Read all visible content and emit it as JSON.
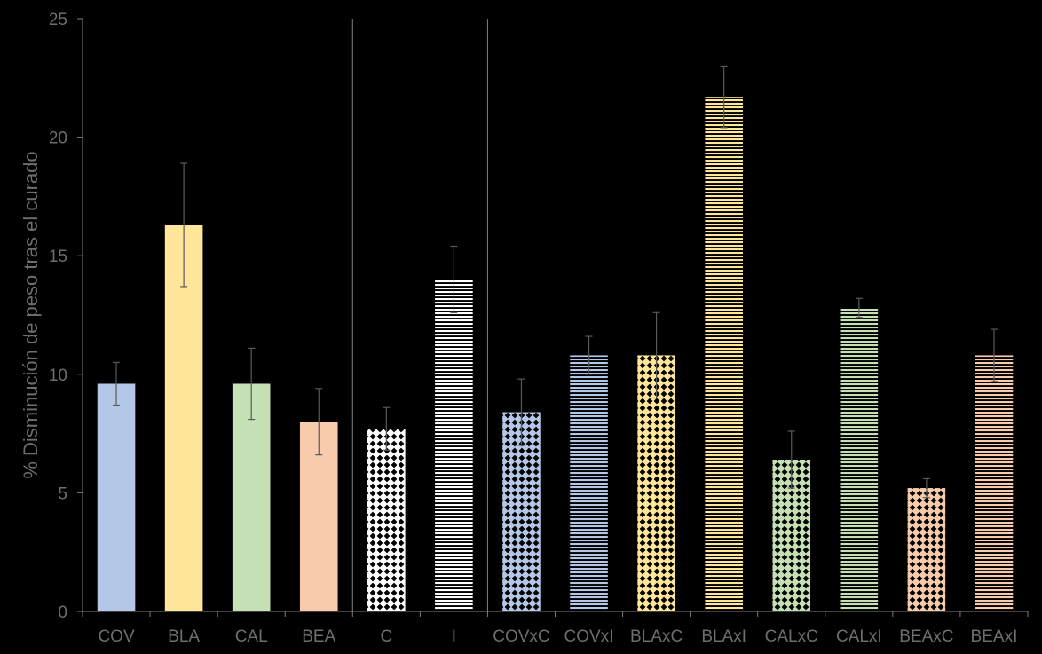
{
  "chart_data": {
    "type": "bar",
    "ylabel": "% Disminución de peso tras el curado",
    "xlabel": "",
    "ylim": [
      0,
      25
    ],
    "yticks": [
      0,
      5,
      10,
      15,
      20,
      25
    ],
    "grid": false,
    "legend": "none",
    "categories": [
      "COV",
      "BLA",
      "CAL",
      "BEA",
      "C",
      "I",
      "COVxC",
      "COVxI",
      "BLAxC",
      "BLAxI",
      "CALxC",
      "CALxI",
      "BEAxC",
      "BEAxI"
    ],
    "values": [
      9.6,
      16.3,
      9.6,
      8.0,
      7.7,
      14.0,
      8.4,
      10.8,
      10.8,
      21.7,
      6.4,
      12.8,
      5.2,
      10.8
    ],
    "error": [
      0.9,
      2.6,
      1.5,
      1.4,
      0.9,
      1.4,
      1.4,
      0.8,
      1.8,
      1.3,
      1.2,
      0.4,
      0.4,
      1.1
    ],
    "colors": [
      "#b4c7e7",
      "#ffe699",
      "#c5e0b4",
      "#f8cbad",
      "#ffffff",
      "#ffffff",
      "#b4c7e7",
      "#b4c7e7",
      "#ffe699",
      "#ffe699",
      "#c5e0b4",
      "#c5e0b4",
      "#f8cbad",
      "#f8cbad"
    ],
    "patterns": [
      "solid",
      "solid",
      "solid",
      "solid",
      "checker",
      "hlines",
      "checker",
      "hlines",
      "checker",
      "hlines",
      "checker",
      "hlines",
      "checker",
      "hlines"
    ],
    "group_separators_after": [
      3,
      5
    ],
    "background": "#000000",
    "text_color": "#6e6e6e"
  }
}
